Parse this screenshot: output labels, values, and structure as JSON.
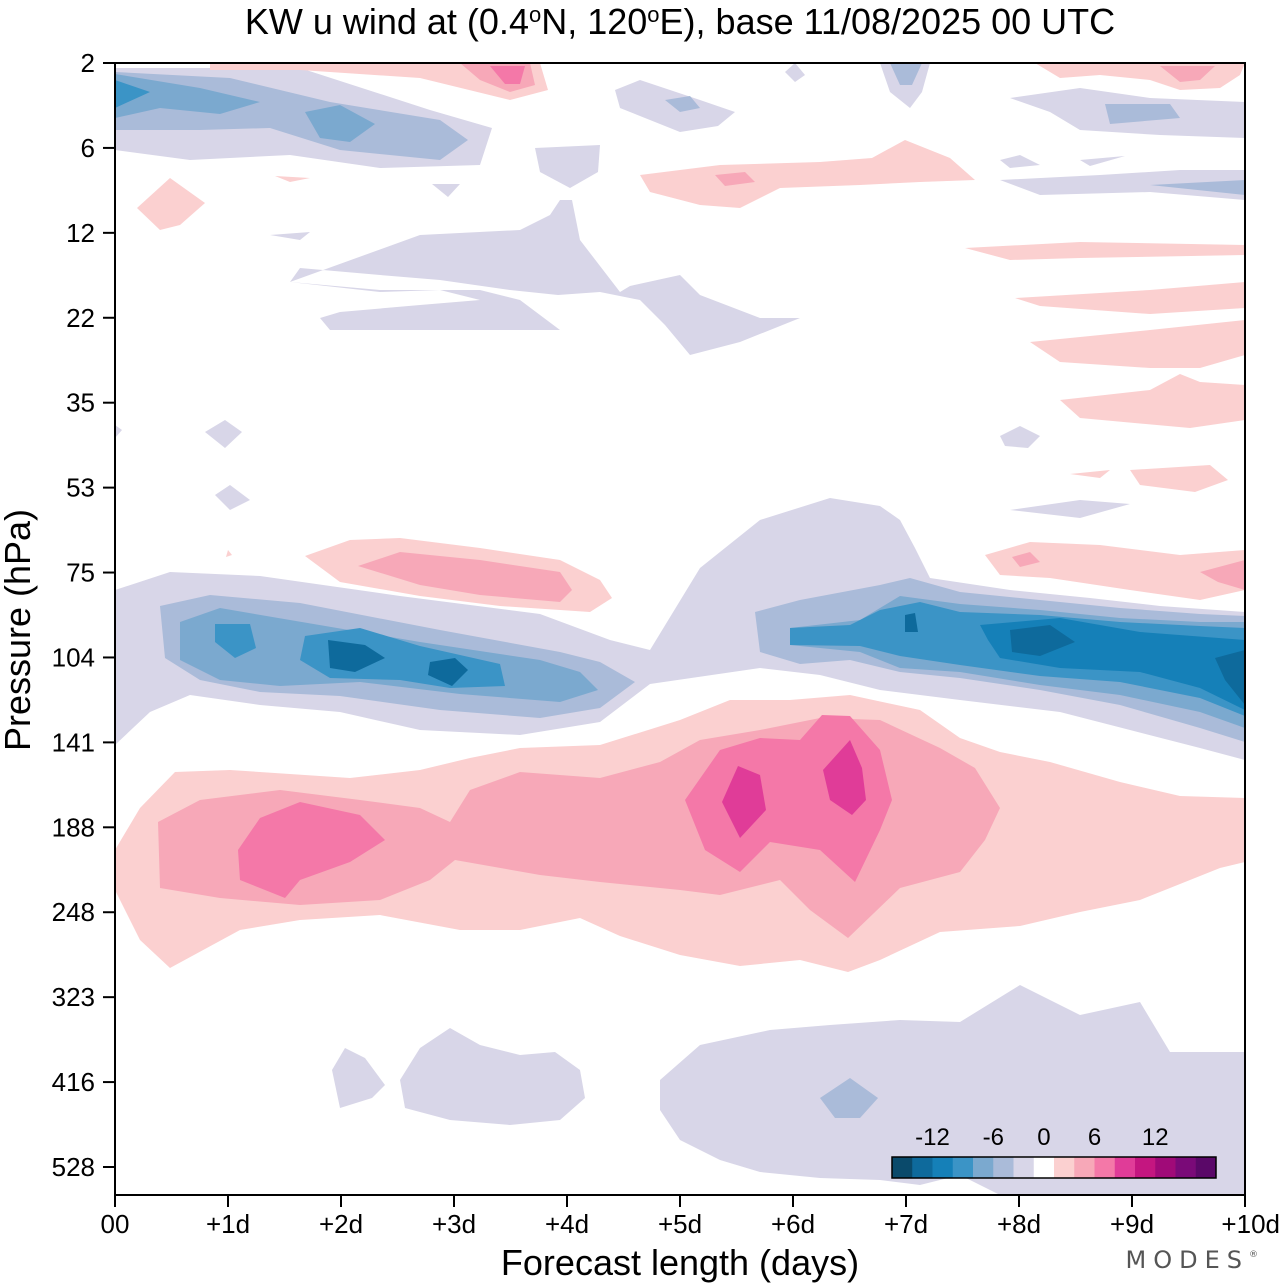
{
  "chart_data": {
    "type": "heatmap",
    "title_prefix": "KW u wind at (0.4",
    "title_deg1": "o",
    "title_mid": "N, 120",
    "title_deg2": "o",
    "title_suffix": "E),  base 11/08/2025  00 UTC",
    "xlabel": "Forecast length (days)",
    "ylabel": "Pressure (hPa)",
    "x_ticks": [
      "00",
      "+1d",
      "+2d",
      "+3d",
      "+4d",
      "+5d",
      "+6d",
      "+7d",
      "+8d",
      "+9d",
      "+10d"
    ],
    "xlim": [
      0,
      10
    ],
    "y_ticks": [
      "2",
      "6",
      "12",
      "22",
      "35",
      "53",
      "75",
      "104",
      "141",
      "188",
      "248",
      "323",
      "416",
      "528"
    ],
    "y_axis": "log-pressure, top 2 hPa to bottom 528 hPa",
    "colorbar": {
      "tick_labels": [
        "-12",
        "-6",
        "0",
        "6",
        "12"
      ],
      "levels": [
        -16,
        -14,
        -12,
        -10,
        -8,
        -6,
        -4,
        -2,
        2,
        4,
        6,
        8,
        10,
        12,
        14,
        16
      ],
      "colors": [
        "#0a4a6b",
        "#0e6a9c",
        "#1580b8",
        "#3b94c6",
        "#7ba9cf",
        "#aabbd9",
        "#d8d6e8",
        "#ffffff",
        "#fbd0d0",
        "#f7a8b8",
        "#f478a8",
        "#e03c98",
        "#c41680",
        "#a00a78",
        "#7a0a78",
        "#5a0868"
      ]
    },
    "features": [
      {
        "name": "easterly jet near 100 hPa",
        "sign": "negative",
        "x_range": [
          0.5,
          10
        ],
        "pressure_hPa": 100,
        "min_value": -14
      },
      {
        "name": "westerly maximum near 190 hPa, day 1.5",
        "sign": "positive",
        "x_center": 1.5,
        "pressure_hPa": 195,
        "max_value": 8
      },
      {
        "name": "westerly maxima near 170 hPa, days 5.5 and 6.5",
        "sign": "positive",
        "x_centers": [
          5.5,
          6.5
        ],
        "pressure_hPa": 165,
        "max_value": 10
      },
      {
        "name": "westerly band near 80 hPa, days 2-4",
        "sign": "positive",
        "x_range": [
          2,
          4
        ],
        "pressure_hPa": 80,
        "max_value": 6
      },
      {
        "name": "weak easterlies near 430 hPa",
        "sign": "negative",
        "x_range": [
          2,
          10
        ],
        "pressure_hPa": 430,
        "min_value": -4
      },
      {
        "name": "upper stratosphere easterlies near 3 hPa",
        "sign": "negative",
        "x_range": [
          0,
          3
        ],
        "pressure_hPa": 3,
        "min_value": -10
      }
    ]
  },
  "brand": {
    "name": "MODES",
    "mark": "®"
  }
}
